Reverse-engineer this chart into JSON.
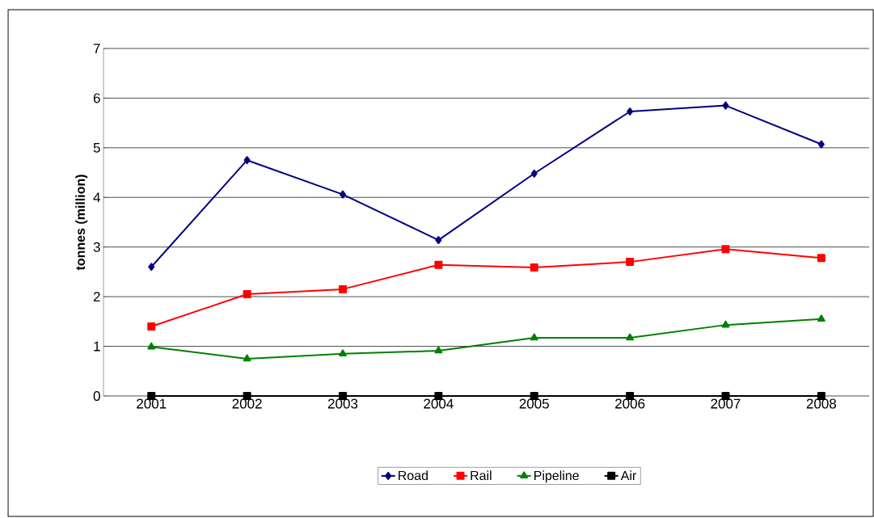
{
  "chart_data": {
    "type": "line",
    "ylabel": "tonnes (million)",
    "categories": [
      "2001",
      "2002",
      "2003",
      "2004",
      "2005",
      "2006",
      "2007",
      "2008"
    ],
    "series": [
      {
        "name": "Road",
        "color": "#000080",
        "marker": "diamond",
        "values": [
          2.6,
          4.75,
          4.06,
          3.14,
          4.48,
          5.73,
          5.85,
          5.07
        ]
      },
      {
        "name": "Rail",
        "color": "#ff0000",
        "marker": "square",
        "values": [
          1.4,
          2.05,
          2.15,
          2.64,
          2.59,
          2.7,
          2.96,
          2.78
        ]
      },
      {
        "name": "Pipeline",
        "color": "#008000",
        "marker": "triangle",
        "values": [
          0.99,
          0.75,
          0.85,
          0.91,
          1.17,
          1.17,
          1.43,
          1.55
        ]
      },
      {
        "name": "Air",
        "color": "#000000",
        "marker": "square",
        "values": [
          0,
          0,
          0,
          0,
          0,
          0,
          0,
          0
        ]
      }
    ],
    "ylim": [
      0,
      7
    ],
    "yticks": [
      0,
      1,
      2,
      3,
      4,
      5,
      6,
      7
    ],
    "grid": "y",
    "legend": "bottom",
    "line_style": "solid"
  }
}
